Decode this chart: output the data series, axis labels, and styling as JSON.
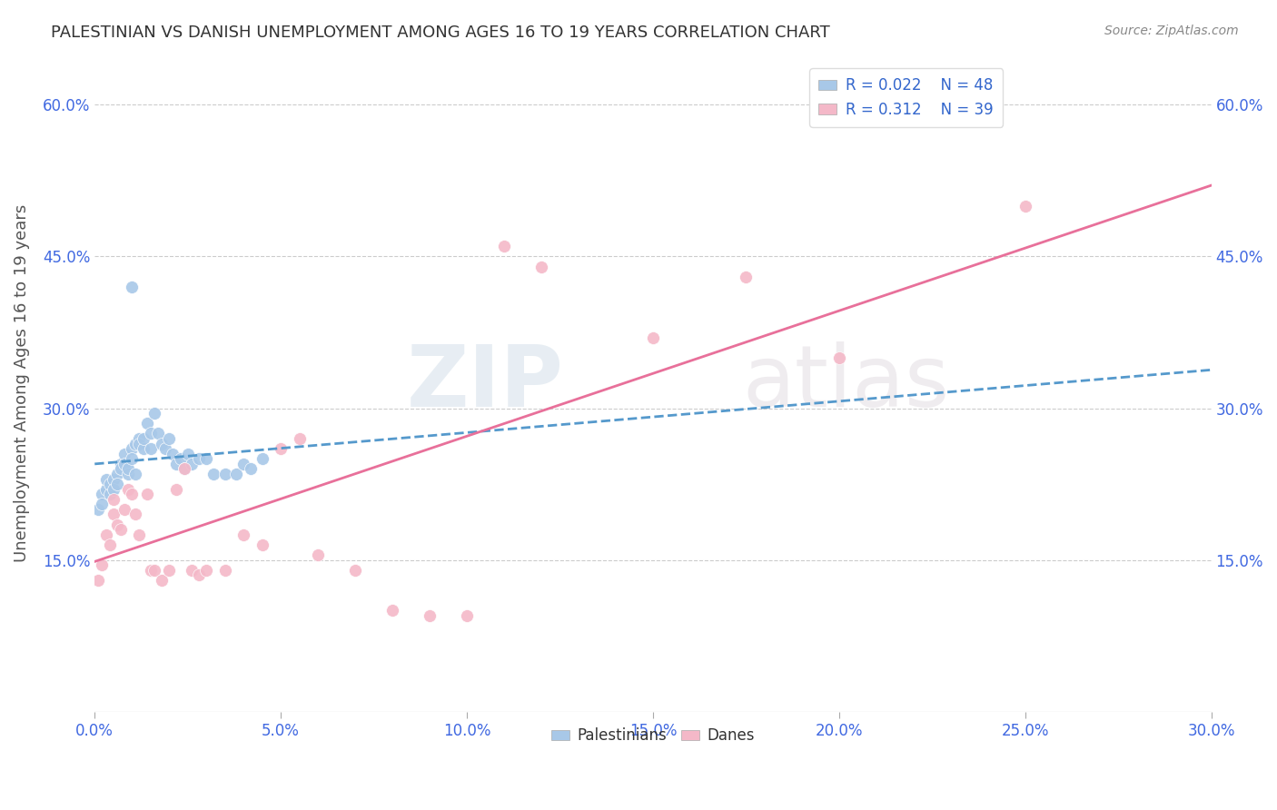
{
  "title": "PALESTINIAN VS DANISH UNEMPLOYMENT AMONG AGES 16 TO 19 YEARS CORRELATION CHART",
  "source": "Source: ZipAtlas.com",
  "ylabel": "Unemployment Among Ages 16 to 19 years",
  "xlim": [
    0.0,
    0.3
  ],
  "ylim": [
    0.0,
    0.65
  ],
  "xticks": [
    0.0,
    0.05,
    0.1,
    0.15,
    0.2,
    0.25,
    0.3
  ],
  "yticks": [
    0.15,
    0.3,
    0.45,
    0.6
  ],
  "blue_color": "#a8c8e8",
  "pink_color": "#f4b8c8",
  "blue_line_color": "#5599cc",
  "pink_line_color": "#e8709a",
  "background_color": "#ffffff",
  "watermark_zip": "ZIP",
  "watermark_atlas": "atlas",
  "legend_r_blue": "0.022",
  "legend_n_blue": "48",
  "legend_r_pink": "0.312",
  "legend_n_pink": "39",
  "blue_scatter_x": [
    0.001,
    0.002,
    0.002,
    0.003,
    0.003,
    0.004,
    0.004,
    0.005,
    0.005,
    0.006,
    0.006,
    0.007,
    0.007,
    0.008,
    0.008,
    0.009,
    0.009,
    0.01,
    0.01,
    0.011,
    0.011,
    0.012,
    0.012,
    0.013,
    0.013,
    0.014,
    0.015,
    0.015,
    0.016,
    0.017,
    0.018,
    0.019,
    0.02,
    0.021,
    0.022,
    0.023,
    0.024,
    0.025,
    0.026,
    0.028,
    0.03,
    0.032,
    0.035,
    0.038,
    0.04,
    0.042,
    0.045,
    0.01
  ],
  "blue_scatter_y": [
    0.2,
    0.215,
    0.205,
    0.22,
    0.23,
    0.215,
    0.225,
    0.23,
    0.22,
    0.235,
    0.225,
    0.245,
    0.24,
    0.255,
    0.245,
    0.235,
    0.24,
    0.26,
    0.25,
    0.235,
    0.265,
    0.27,
    0.265,
    0.26,
    0.27,
    0.285,
    0.275,
    0.26,
    0.295,
    0.275,
    0.265,
    0.26,
    0.27,
    0.255,
    0.245,
    0.25,
    0.24,
    0.255,
    0.245,
    0.25,
    0.25,
    0.235,
    0.235,
    0.235,
    0.245,
    0.24,
    0.25,
    0.42
  ],
  "pink_scatter_x": [
    0.001,
    0.002,
    0.003,
    0.004,
    0.005,
    0.005,
    0.006,
    0.007,
    0.008,
    0.009,
    0.01,
    0.011,
    0.012,
    0.014,
    0.015,
    0.016,
    0.018,
    0.02,
    0.022,
    0.024,
    0.026,
    0.028,
    0.03,
    0.035,
    0.04,
    0.045,
    0.05,
    0.055,
    0.06,
    0.07,
    0.08,
    0.09,
    0.1,
    0.11,
    0.12,
    0.15,
    0.175,
    0.2,
    0.25
  ],
  "pink_scatter_y": [
    0.13,
    0.145,
    0.175,
    0.165,
    0.195,
    0.21,
    0.185,
    0.18,
    0.2,
    0.22,
    0.215,
    0.195,
    0.175,
    0.215,
    0.14,
    0.14,
    0.13,
    0.14,
    0.22,
    0.24,
    0.14,
    0.135,
    0.14,
    0.14,
    0.175,
    0.165,
    0.26,
    0.27,
    0.155,
    0.14,
    0.1,
    0.095,
    0.095,
    0.46,
    0.44,
    0.37,
    0.43,
    0.35,
    0.5
  ]
}
